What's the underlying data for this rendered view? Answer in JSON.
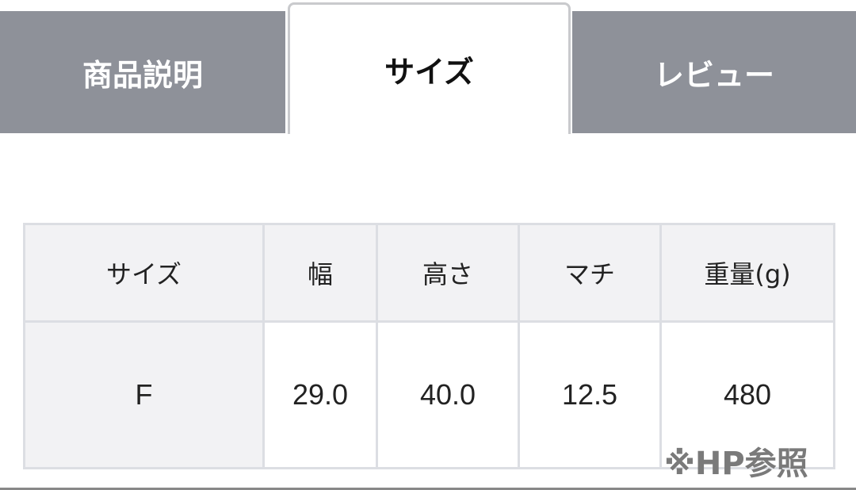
{
  "tabs": [
    {
      "label": "商品説明",
      "active": false
    },
    {
      "label": "サイズ",
      "active": true
    },
    {
      "label": "レビュー",
      "active": false
    }
  ],
  "table": {
    "headers": [
      "サイズ",
      "幅",
      "高さ",
      "マチ",
      "重量(g)"
    ],
    "rows": [
      [
        "F",
        "29.0",
        "40.0",
        "12.5",
        "480"
      ]
    ]
  },
  "note": "※HP参照",
  "colors": {
    "tab_inactive": "#8e9199",
    "header_bg": "#f2f2f4",
    "border": "#dcdee3"
  }
}
